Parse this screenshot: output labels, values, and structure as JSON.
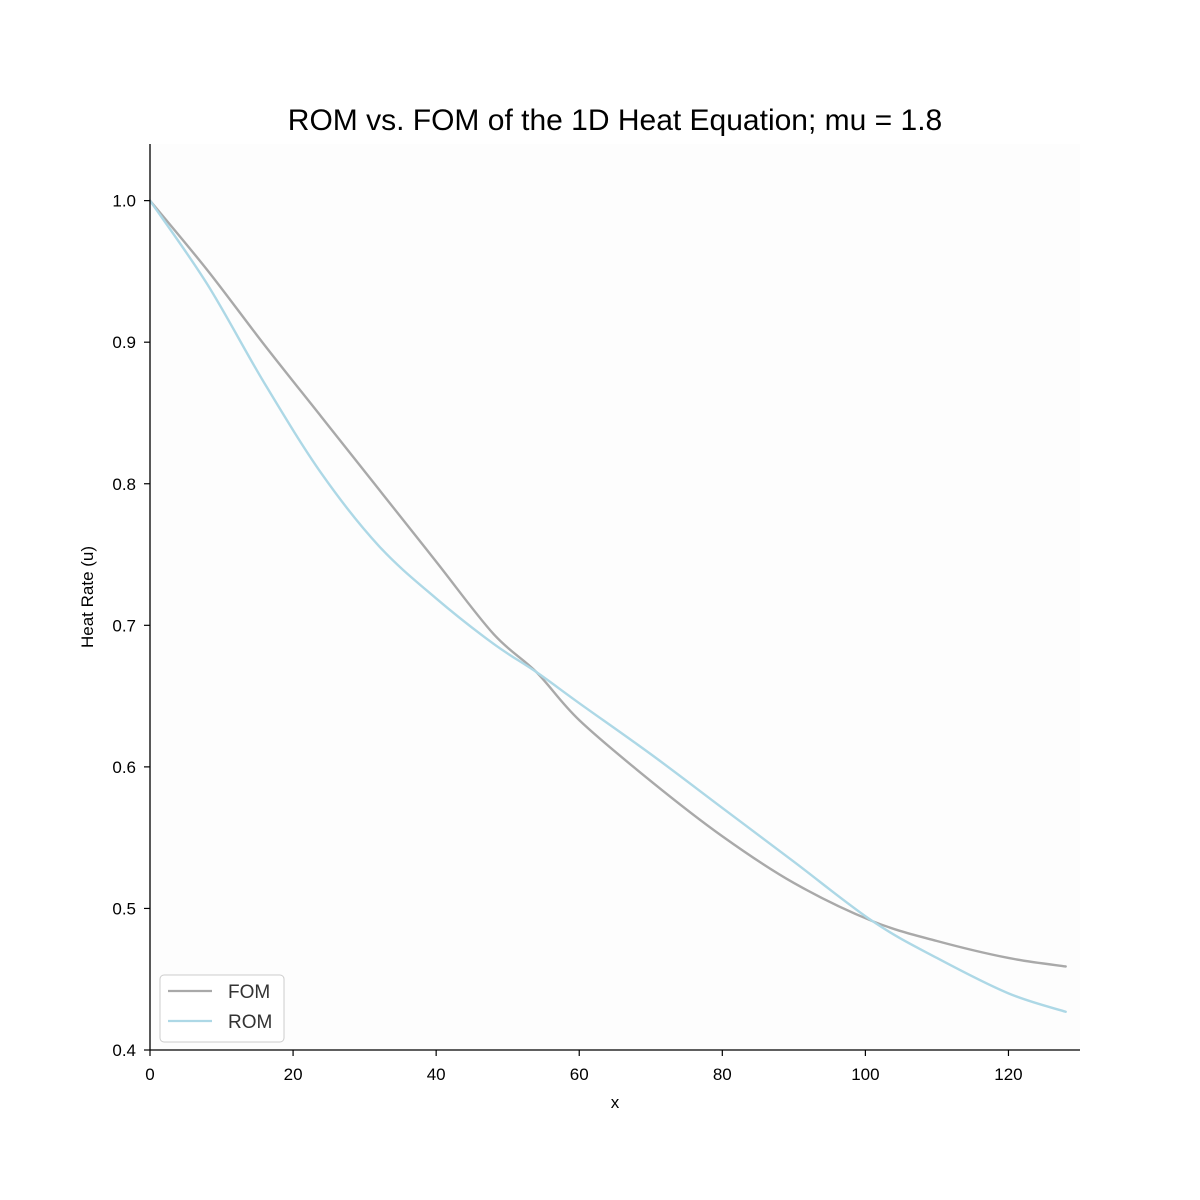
{
  "chart_data": {
    "type": "line",
    "title": "ROM vs. FOM of the 1D Heat Equation; mu = 1.8",
    "xlabel": "x",
    "ylabel": "Heat Rate (u)",
    "xlim": [
      0,
      130
    ],
    "ylim": [
      0.4,
      1.04
    ],
    "xticks": [
      0,
      20,
      40,
      60,
      80,
      100,
      120
    ],
    "yticks": [
      0.4,
      0.5,
      0.6,
      0.7,
      0.8,
      0.9,
      1.0
    ],
    "xtick_labels": [
      "0",
      "20",
      "40",
      "60",
      "80",
      "100",
      "120"
    ],
    "ytick_labels": [
      "0.4",
      "0.5",
      "0.6",
      "0.7",
      "0.8",
      "0.9",
      "1.0"
    ],
    "grid": false,
    "legend": {
      "position": "lower-left"
    },
    "x": [
      0,
      8,
      16,
      24,
      32,
      40,
      48,
      54,
      60,
      70,
      80,
      90,
      101,
      110,
      120,
      128
    ],
    "series": [
      {
        "name": "FOM",
        "color": "#a9a9a9",
        "values": [
          1.0,
          0.951,
          0.898,
          0.847,
          0.796,
          0.745,
          0.694,
          0.667,
          0.633,
          0.59,
          0.551,
          0.518,
          0.491,
          0.477,
          0.465,
          0.459
        ]
      },
      {
        "name": "ROM",
        "color": "#add8e6",
        "values": [
          1.0,
          0.941,
          0.871,
          0.807,
          0.756,
          0.719,
          0.687,
          0.667,
          0.645,
          0.609,
          0.571,
          0.533,
          0.491,
          0.465,
          0.44,
          0.427
        ]
      }
    ]
  }
}
